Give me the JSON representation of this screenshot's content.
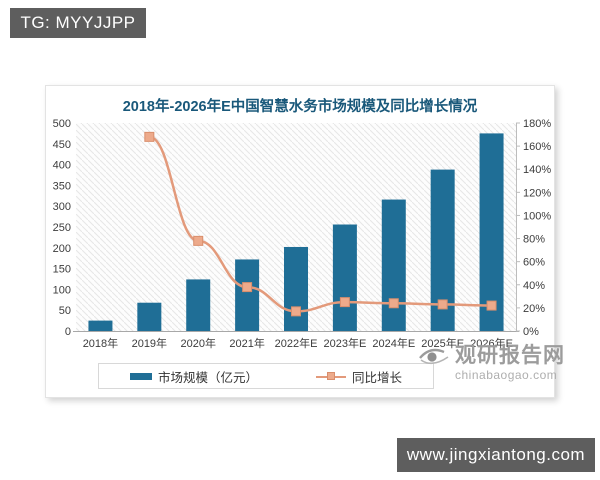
{
  "header_badge": {
    "text": "TG: MYYJJPP"
  },
  "footer_badge": {
    "text": "www.jingxiantong.com"
  },
  "watermark": {
    "title": "观研报告网",
    "domain": "chinabaogao.com"
  },
  "chart_data": {
    "type": "bar",
    "title": "2018年-2026年E中国智慧水务市场规模及同比增长情况",
    "categories": [
      "2018年",
      "2019年",
      "2020年",
      "2021年",
      "2022年E",
      "2023年E",
      "2024年E",
      "2025年E",
      "2026年E"
    ],
    "series": [
      {
        "name": "市场规模（亿元）",
        "type": "bar",
        "axis": "left",
        "color": "#1f6e96",
        "values": [
          25,
          68,
          124,
          172,
          202,
          256,
          316,
          388,
          475
        ]
      },
      {
        "name": "同比增长",
        "type": "line",
        "axis": "right",
        "color": "#e39a7b",
        "marker_fill": "#edaa8b",
        "marker_stroke": "#d98e6c",
        "values": [
          null,
          168,
          78,
          38,
          17,
          25,
          24,
          23,
          22
        ]
      }
    ],
    "left_axis": {
      "min": 0,
      "max": 500,
      "step": 50,
      "ticks": [
        "0",
        "50",
        "100",
        "150",
        "200",
        "250",
        "300",
        "350",
        "400",
        "450",
        "500"
      ]
    },
    "right_axis": {
      "min": 0,
      "max": 180,
      "step": 20,
      "ticks": [
        "0%",
        "20%",
        "40%",
        "60%",
        "80%",
        "100%",
        "120%",
        "140%",
        "160%",
        "180%"
      ],
      "unit": "%"
    },
    "legend_position": "bottom",
    "grid": false,
    "plot_background": "diagonal-hatch"
  }
}
